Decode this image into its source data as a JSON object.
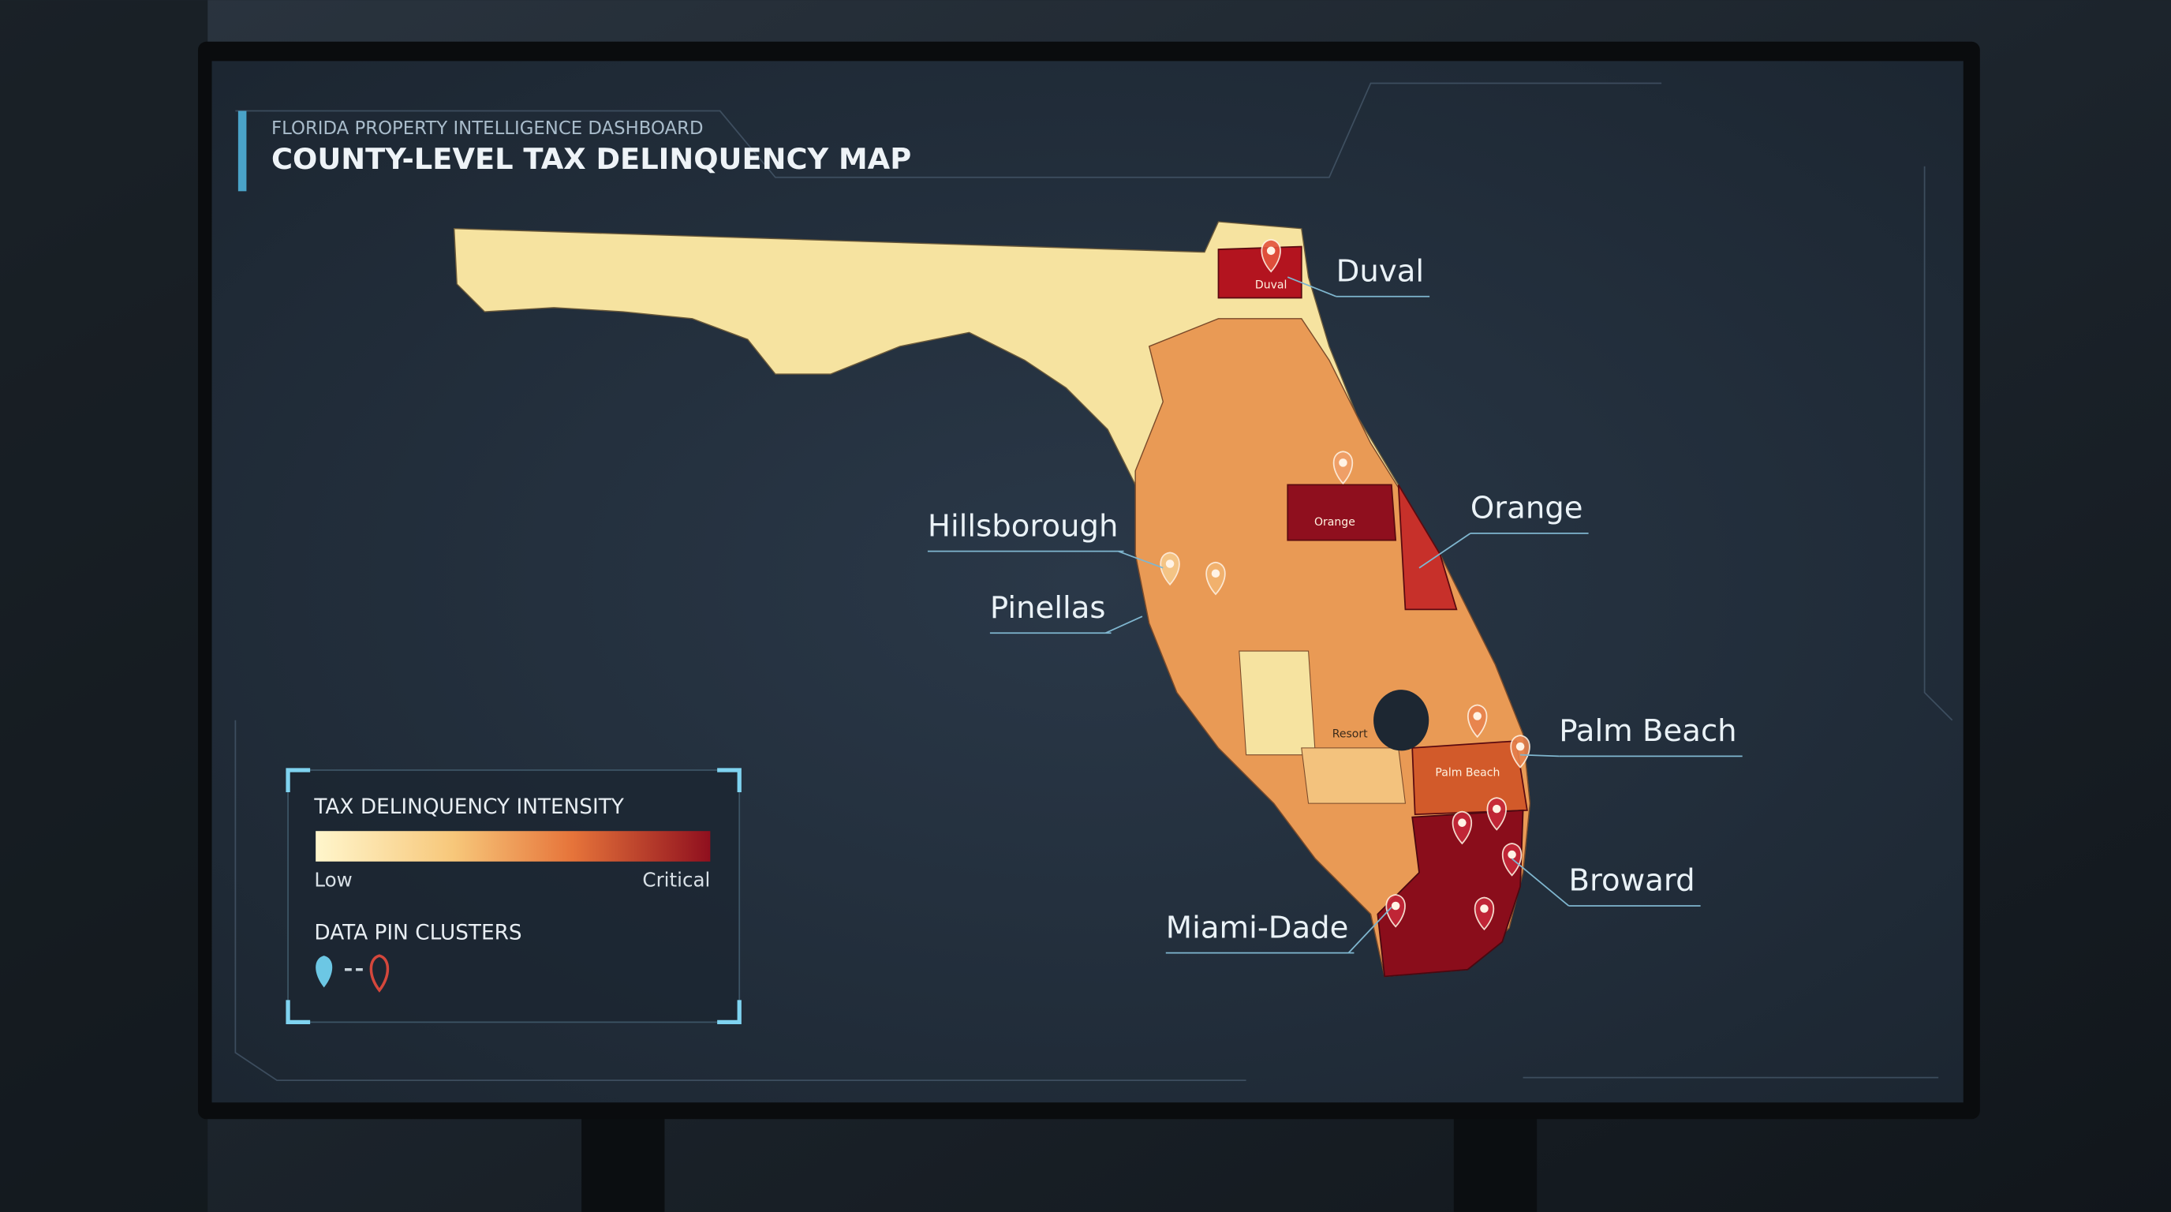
{
  "header": {
    "subtitle": "FLORIDA PROPERTY INTELLIGENCE DASHBOARD",
    "title": "COUNTY-LEVEL TAX DELINQUENCY MAP"
  },
  "callouts": [
    {
      "label": "Duval"
    },
    {
      "label": "Orange"
    },
    {
      "label": "Hillsborough"
    },
    {
      "label": "Pinellas"
    },
    {
      "label": "Palm Beach"
    },
    {
      "label": "Broward"
    },
    {
      "label": "Miami-Dade"
    }
  ],
  "map_labels": [
    "Duval",
    "Orange",
    "Palm Beach",
    "Resort"
  ],
  "legend": {
    "title": "TAX DELINQUENCY INTENSITY",
    "low": "Low",
    "high": "Critical",
    "pins_title": "DATA PIN CLUSTERS"
  }
}
